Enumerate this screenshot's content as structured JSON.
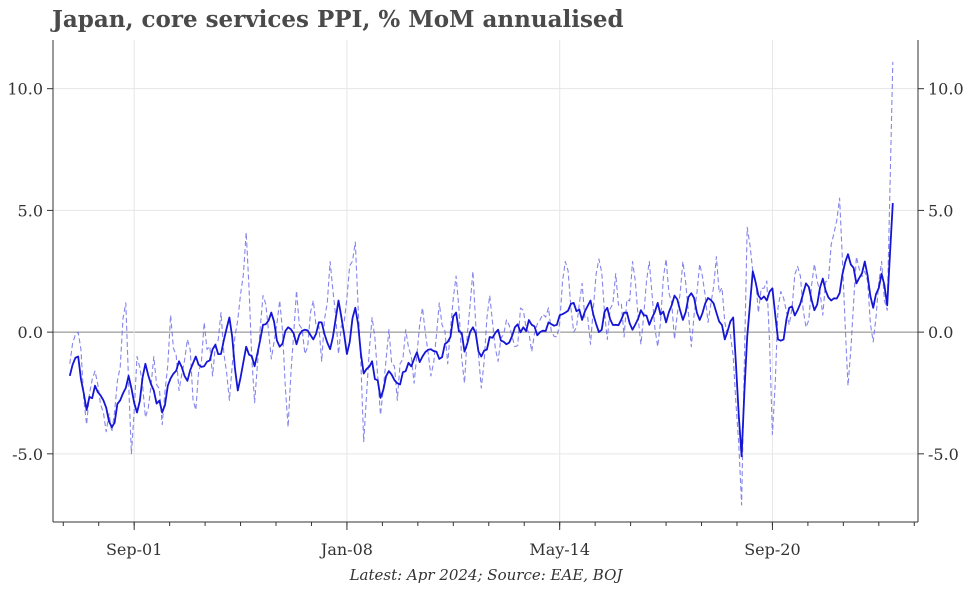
{
  "chart_data": {
    "type": "line",
    "title": "Japan, core services PPI, % MoM annualised",
    "caption": "Latest: Apr 2024; Source: EAE, BOJ",
    "xlabel": "",
    "ylabel": "",
    "x_start": "1999-10",
    "x_end": "2024-04",
    "x_ticks": [
      {
        "date": "2001-09",
        "label": "Sep-01"
      },
      {
        "date": "2008-01",
        "label": "Jan-08"
      },
      {
        "date": "2014-05",
        "label": "May-14"
      },
      {
        "date": "2020-09",
        "label": "Sep-20"
      }
    ],
    "xlim": [
      "1999-04",
      "2025-01"
    ],
    "ylim": [
      -7.8,
      12.0
    ],
    "y_ticks": [
      -5.0,
      0.0,
      5.0,
      10.0
    ],
    "y_tick_labels": [
      "-5.0",
      "0.0",
      "5.0",
      "10.0"
    ],
    "axes_both_sides": true,
    "grid": true,
    "zero_line": true,
    "series": [
      {
        "style": "solid",
        "color": "#1515d6",
        "anchors": [
          [
            "1999-10",
            -1.8
          ],
          [
            "2000-01",
            -1.0
          ],
          [
            "2000-04",
            -3.2
          ],
          [
            "2000-07",
            -2.2
          ],
          [
            "2000-10",
            -2.8
          ],
          [
            "2001-01",
            -3.9
          ],
          [
            "2001-04",
            -2.8
          ],
          [
            "2001-07",
            -1.8
          ],
          [
            "2001-10",
            -3.3
          ],
          [
            "2002-01",
            -1.3
          ],
          [
            "2002-04",
            -2.4
          ],
          [
            "2002-07",
            -3.3
          ],
          [
            "2002-10",
            -1.9
          ],
          [
            "2003-01",
            -1.2
          ],
          [
            "2003-04",
            -2.0
          ],
          [
            "2003-07",
            -1.0
          ],
          [
            "2003-10",
            -1.4
          ],
          [
            "2004-01",
            -0.7
          ],
          [
            "2004-04",
            -0.9
          ],
          [
            "2004-07",
            0.6
          ],
          [
            "2004-10",
            -2.4
          ],
          [
            "2005-01",
            -0.6
          ],
          [
            "2005-04",
            -1.4
          ],
          [
            "2005-07",
            0.3
          ],
          [
            "2005-10",
            0.8
          ],
          [
            "2006-01",
            -0.6
          ],
          [
            "2006-04",
            0.2
          ],
          [
            "2006-07",
            -0.5
          ],
          [
            "2006-10",
            0.1
          ],
          [
            "2007-01",
            -0.3
          ],
          [
            "2007-04",
            0.4
          ],
          [
            "2007-07",
            -0.7
          ],
          [
            "2007-10",
            1.3
          ],
          [
            "2008-01",
            -0.9
          ],
          [
            "2008-04",
            1.0
          ],
          [
            "2008-07",
            -1.7
          ],
          [
            "2008-10",
            -1.2
          ],
          [
            "2009-01",
            -2.7
          ],
          [
            "2009-04",
            -1.6
          ],
          [
            "2009-07",
            -2.1
          ],
          [
            "2009-10",
            -1.6
          ],
          [
            "2010-01",
            -1.1
          ],
          [
            "2010-04",
            -1.0
          ],
          [
            "2010-07",
            -0.7
          ],
          [
            "2010-10",
            -1.1
          ],
          [
            "2011-01",
            -0.4
          ],
          [
            "2011-04",
            0.8
          ],
          [
            "2011-07",
            -0.8
          ],
          [
            "2011-10",
            0.2
          ],
          [
            "2012-01",
            -1.0
          ],
          [
            "2012-04",
            -0.2
          ],
          [
            "2012-07",
            0.1
          ],
          [
            "2012-10",
            -0.5
          ],
          [
            "2013-01",
            0.2
          ],
          [
            "2013-04",
            0.2
          ],
          [
            "2013-07",
            0.3
          ],
          [
            "2013-10",
            0.0
          ],
          [
            "2014-01",
            0.4
          ],
          [
            "2014-04",
            0.3
          ],
          [
            "2014-07",
            0.8
          ],
          [
            "2014-10",
            1.2
          ],
          [
            "2015-01",
            0.5
          ],
          [
            "2015-04",
            1.3
          ],
          [
            "2015-07",
            0.0
          ],
          [
            "2015-10",
            1.0
          ],
          [
            "2016-01",
            0.3
          ],
          [
            "2016-04",
            0.8
          ],
          [
            "2016-07",
            0.1
          ],
          [
            "2016-10",
            0.9
          ],
          [
            "2017-01",
            0.3
          ],
          [
            "2017-04",
            1.2
          ],
          [
            "2017-07",
            0.4
          ],
          [
            "2017-10",
            1.5
          ],
          [
            "2018-01",
            0.5
          ],
          [
            "2018-04",
            1.6
          ],
          [
            "2018-07",
            0.5
          ],
          [
            "2018-10",
            1.4
          ],
          [
            "2019-01",
            0.8
          ],
          [
            "2019-04",
            -0.3
          ],
          [
            "2019-07",
            0.6
          ],
          [
            "2019-10",
            -5.1
          ],
          [
            "2019-12",
            -0.2
          ],
          [
            "2020-02",
            2.5
          ],
          [
            "2020-04",
            1.5
          ],
          [
            "2020-07",
            1.3
          ],
          [
            "2020-09",
            1.8
          ],
          [
            "2020-11",
            -0.3
          ],
          [
            "2021-01",
            -0.3
          ],
          [
            "2021-03",
            1.0
          ],
          [
            "2021-06",
            0.9
          ],
          [
            "2021-09",
            2.0
          ],
          [
            "2021-12",
            0.9
          ],
          [
            "2022-03",
            2.2
          ],
          [
            "2022-06",
            1.3
          ],
          [
            "2022-09",
            1.6
          ],
          [
            "2022-12",
            3.2
          ],
          [
            "2023-03",
            2.0
          ],
          [
            "2023-06",
            2.9
          ],
          [
            "2023-09",
            1.0
          ],
          [
            "2023-12",
            2.4
          ],
          [
            "2024-02",
            1.1
          ],
          [
            "2024-04",
            5.3
          ]
        ]
      },
      {
        "style": "dashed",
        "color": "#7070e8",
        "anchors": [
          [
            "1999-10",
            -1.3
          ],
          [
            "2000-01",
            0.0
          ],
          [
            "2000-04",
            -3.8
          ],
          [
            "2000-07",
            -1.6
          ],
          [
            "2000-10",
            -3.3
          ],
          [
            "2001-01",
            -4.1
          ],
          [
            "2001-03",
            -2.0
          ],
          [
            "2001-06",
            1.2
          ],
          [
            "2001-08",
            -5.0
          ],
          [
            "2001-10",
            -1.0
          ],
          [
            "2002-01",
            -3.5
          ],
          [
            "2002-04",
            -1.0
          ],
          [
            "2002-07",
            -3.8
          ],
          [
            "2002-10",
            0.7
          ],
          [
            "2003-01",
            -2.4
          ],
          [
            "2003-04",
            -0.3
          ],
          [
            "2003-07",
            -3.2
          ],
          [
            "2003-10",
            0.4
          ],
          [
            "2004-01",
            -1.8
          ],
          [
            "2004-04",
            0.8
          ],
          [
            "2004-07",
            -2.8
          ],
          [
            "2004-10",
            0.5
          ],
          [
            "2005-01",
            4.1
          ],
          [
            "2005-04",
            -2.9
          ],
          [
            "2005-07",
            1.5
          ],
          [
            "2005-10",
            -1.1
          ],
          [
            "2006-01",
            1.3
          ],
          [
            "2006-04",
            -3.9
          ],
          [
            "2006-07",
            1.7
          ],
          [
            "2006-10",
            -0.9
          ],
          [
            "2007-01",
            1.3
          ],
          [
            "2007-04",
            -1.2
          ],
          [
            "2007-07",
            2.9
          ],
          [
            "2007-10",
            -0.9
          ],
          [
            "2008-01",
            1.4
          ],
          [
            "2008-04",
            3.7
          ],
          [
            "2008-07",
            -4.5
          ],
          [
            "2008-10",
            0.6
          ],
          [
            "2009-01",
            -3.4
          ],
          [
            "2009-04",
            0.1
          ],
          [
            "2009-07",
            -2.8
          ],
          [
            "2009-10",
            0.1
          ],
          [
            "2010-01",
            -2.1
          ],
          [
            "2010-04",
            1.0
          ],
          [
            "2010-07",
            -1.8
          ],
          [
            "2010-10",
            1.2
          ],
          [
            "2011-01",
            -1.3
          ],
          [
            "2011-04",
            2.3
          ],
          [
            "2011-07",
            -2.1
          ],
          [
            "2011-10",
            2.5
          ],
          [
            "2012-01",
            -2.3
          ],
          [
            "2012-04",
            1.5
          ],
          [
            "2012-07",
            -1.2
          ],
          [
            "2012-10",
            0.5
          ],
          [
            "2013-01",
            -0.6
          ],
          [
            "2013-04",
            0.9
          ],
          [
            "2013-07",
            -0.8
          ],
          [
            "2013-10",
            0.5
          ],
          [
            "2014-01",
            1.0
          ],
          [
            "2014-04",
            -0.2
          ],
          [
            "2014-07",
            2.9
          ],
          [
            "2014-10",
            0.0
          ],
          [
            "2015-01",
            2.0
          ],
          [
            "2015-04",
            -0.5
          ],
          [
            "2015-07",
            3.0
          ],
          [
            "2015-10",
            -0.3
          ],
          [
            "2016-01",
            2.4
          ],
          [
            "2016-04",
            -0.2
          ],
          [
            "2016-07",
            2.9
          ],
          [
            "2016-10",
            -0.5
          ],
          [
            "2017-01",
            2.9
          ],
          [
            "2017-04",
            -0.6
          ],
          [
            "2017-07",
            3.0
          ],
          [
            "2017-10",
            -0.3
          ],
          [
            "2018-01",
            2.9
          ],
          [
            "2018-04",
            -0.6
          ],
          [
            "2018-07",
            2.8
          ],
          [
            "2018-10",
            0.4
          ],
          [
            "2019-01",
            3.1
          ],
          [
            "2019-04",
            0.4
          ],
          [
            "2019-07",
            -1.0
          ],
          [
            "2019-10",
            -7.1
          ],
          [
            "2019-12",
            4.3
          ],
          [
            "2020-02",
            2.5
          ],
          [
            "2020-04",
            0.8
          ],
          [
            "2020-07",
            2.1
          ],
          [
            "2020-09",
            -4.2
          ],
          [
            "2020-11",
            1.0
          ],
          [
            "2021-01",
            1.4
          ],
          [
            "2021-03",
            0.3
          ],
          [
            "2021-06",
            2.7
          ],
          [
            "2021-09",
            0.2
          ],
          [
            "2021-12",
            2.8
          ],
          [
            "2022-03",
            0.7
          ],
          [
            "2022-06",
            3.6
          ],
          [
            "2022-09",
            5.5
          ],
          [
            "2022-12",
            -2.2
          ],
          [
            "2023-03",
            3.1
          ],
          [
            "2023-06",
            2.5
          ],
          [
            "2023-09",
            -0.4
          ],
          [
            "2023-12",
            2.9
          ],
          [
            "2024-02",
            0.9
          ],
          [
            "2024-04",
            11.1
          ]
        ]
      }
    ]
  }
}
